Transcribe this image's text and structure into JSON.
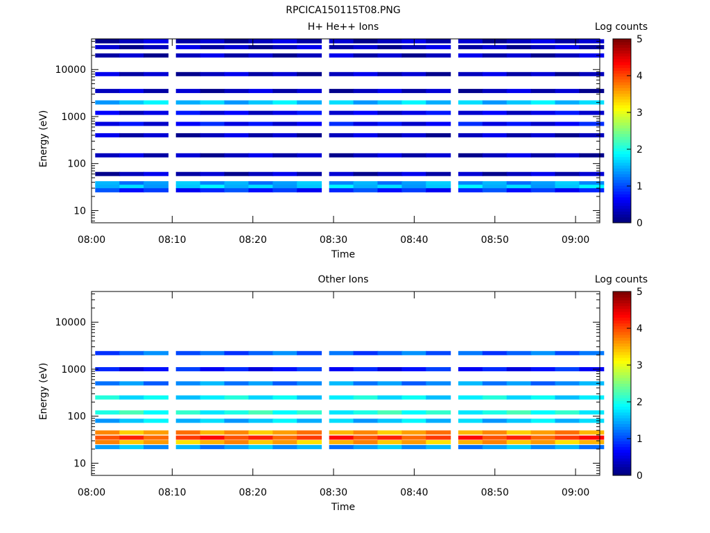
{
  "figure_title": "RPCICA150115T08.PNG",
  "chart_data": [
    {
      "type": "heatmap",
      "title": "H+ He++ Ions",
      "xlabel": "Time",
      "ylabel": "Energy (eV)",
      "colorbar_label": "Log counts",
      "colorbar_ticks": [
        "0",
        "1",
        "2",
        "3",
        "4",
        "5"
      ],
      "color_range": [
        0,
        5
      ],
      "y_scale": "log",
      "y_range": [
        5.5,
        45000
      ],
      "x_range": [
        "08:00",
        "09:03"
      ],
      "x_ticks": [
        "08:00",
        "08:10",
        "08:20",
        "08:30",
        "08:40",
        "08:50",
        "09:00"
      ],
      "y_ticks": [
        "10",
        "100",
        "1000",
        "10000"
      ],
      "columns": [
        "08:02",
        "08:05",
        "08:08",
        "08:12",
        "08:15",
        "08:18",
        "08:21",
        "08:24",
        "08:27",
        "08:31",
        "08:34",
        "08:37",
        "08:40",
        "08:43",
        "08:47",
        "08:50",
        "08:53",
        "08:56",
        "08:59",
        "09:02"
      ],
      "band_energies": [
        {
          "label": "40000",
          "level": 0.3
        },
        {
          "label": "30000",
          "level": 0.3
        },
        {
          "label": "20000",
          "level": 0.3
        },
        {
          "label": "8000",
          "level": 0.3
        },
        {
          "label": "3500",
          "level": 0.3
        },
        {
          "label": "2000",
          "level": 1.6
        },
        {
          "label": "1200",
          "level": 0.5
        },
        {
          "label": "700",
          "level": 0.6
        },
        {
          "label": "400",
          "level": 0.3
        },
        {
          "label": "150",
          "level": 0.3
        },
        {
          "label": "60",
          "level": 0.3
        },
        {
          "label": "38",
          "level": 1.4
        },
        {
          "label": "32",
          "level": 1.6
        },
        {
          "label": "27",
          "level": 0.8
        }
      ]
    },
    {
      "type": "heatmap",
      "title": "Other Ions",
      "xlabel": "Time",
      "ylabel": "Energy (eV)",
      "colorbar_label": "Log counts",
      "colorbar_ticks": [
        "0",
        "1",
        "2",
        "3",
        "4",
        "5"
      ],
      "color_range": [
        0,
        5
      ],
      "y_scale": "log",
      "y_range": [
        5.5,
        45000
      ],
      "x_range": [
        "08:00",
        "09:03"
      ],
      "x_ticks": [
        "08:00",
        "08:10",
        "08:20",
        "08:30",
        "08:40",
        "08:50",
        "09:00"
      ],
      "y_ticks": [
        "10",
        "100",
        "1000",
        "10000"
      ],
      "columns": [
        "08:02",
        "08:05",
        "08:08",
        "08:12",
        "08:15",
        "08:18",
        "08:21",
        "08:24",
        "08:27",
        "08:31",
        "08:34",
        "08:37",
        "08:40",
        "08:43",
        "08:47",
        "08:50",
        "08:53",
        "08:56",
        "08:59",
        "09:02"
      ],
      "band_energies": [
        {
          "label": "2200",
          "level": 1.1
        },
        {
          "label": "1000",
          "level": 0.7
        },
        {
          "label": "500",
          "level": 1.3
        },
        {
          "label": "250",
          "level": 1.8
        },
        {
          "label": "120",
          "level": 2.0
        },
        {
          "label": "80",
          "level": 1.6
        },
        {
          "label": "45",
          "level": 3.6
        },
        {
          "label": "35",
          "level": 4.1
        },
        {
          "label": "28",
          "level": 3.5
        },
        {
          "label": "22",
          "level": 1.4
        }
      ]
    }
  ]
}
